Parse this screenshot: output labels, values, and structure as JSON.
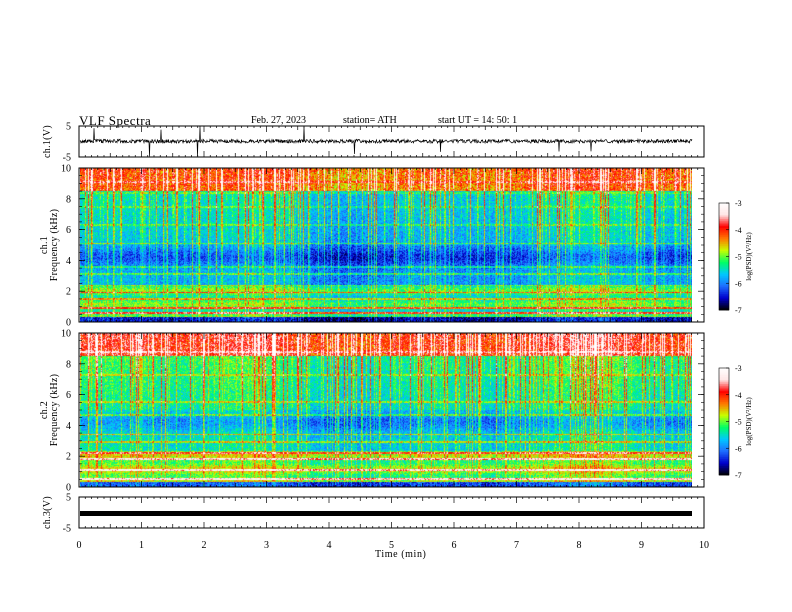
{
  "header": {
    "title": "VLF  Spectra",
    "date": "Feb. 27, 2023",
    "station": "station= ATH",
    "start_ut": "start  UT  =    14: 50: 1"
  },
  "chart_data": [
    {
      "type": "line",
      "name": "ch1-waveform",
      "ylabel": "ch.1(V)",
      "ylim": [
        -5,
        5
      ],
      "yticks": [
        "5",
        "-5"
      ],
      "xlim": [
        0,
        10
      ],
      "description_values": {
        "baseline_v": 0.1,
        "noise_amplitude_v": 0.6,
        "spikes": true
      }
    },
    {
      "type": "heatmap",
      "name": "ch1-spectrogram",
      "ylabel": "ch.1\nFrequency  (kHz)",
      "ylim": [
        0,
        10
      ],
      "yticks": [
        "0",
        "2",
        "4",
        "6",
        "8",
        "10"
      ],
      "xlim": [
        0,
        9.8
      ],
      "colorbar": {
        "label": "log(PSD)(V²/Hz)",
        "range": [
          -7,
          -3
        ],
        "ticks": [
          "-3",
          "-4",
          "-5",
          "-6",
          "-7"
        ]
      }
    },
    {
      "type": "heatmap",
      "name": "ch2-spectrogram",
      "ylabel": "ch.2\nFrequency  (kHz)",
      "ylim": [
        0,
        10
      ],
      "yticks": [
        "0",
        "2",
        "4",
        "6",
        "8",
        "10"
      ],
      "xlim": [
        0,
        9.8
      ],
      "colorbar": {
        "label": "log(PSD)(V²/Hz)",
        "range": [
          -7,
          -3
        ],
        "ticks": [
          "-3",
          "-4",
          "-5",
          "-6",
          "-7"
        ]
      }
    },
    {
      "type": "line",
      "name": "ch3-waveform",
      "ylabel": "ch.3(V)",
      "ylim": [
        -5,
        5
      ],
      "yticks": [
        "5",
        "-5"
      ],
      "xlim": [
        0,
        10
      ],
      "constant_value_v": 0
    }
  ],
  "xaxis": {
    "label": "Time  (min)",
    "range": [
      0,
      10
    ],
    "ticks": [
      "0",
      "1",
      "2",
      "3",
      "4",
      "5",
      "6",
      "7",
      "8",
      "9",
      "10"
    ]
  },
  "colors": {
    "line": "#000000",
    "axis": "#000000",
    "colormap": [
      "#000000",
      "#0000cd",
      "#1e6eff",
      "#00c8ff",
      "#00ff64",
      "#c8ff00",
      "#ff7800",
      "#ff0000",
      "#ffe6e6",
      "#ffffff"
    ]
  }
}
